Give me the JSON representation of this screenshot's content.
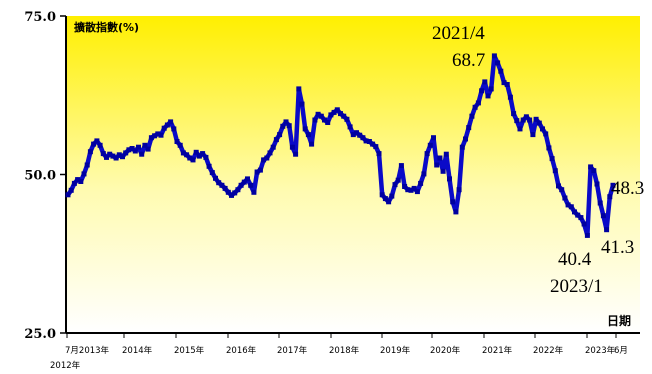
{
  "chart_data": {
    "type": "line",
    "ylabel": "擴散指數(%)",
    "xlabel": "日期",
    "ylim": [
      25.0,
      75.0
    ],
    "yticks": [
      "75.0",
      "50.0",
      "25.0"
    ],
    "xticks": [
      "7月2013年",
      "2014年",
      "2015年",
      "2016年",
      "2017年",
      "2018年",
      "2019年",
      "2020年",
      "2021年",
      "2022年",
      "2023年",
      "6月"
    ],
    "x_start_label": "2012年",
    "annotations": [
      {
        "text": "2021/4",
        "value": 68.7
      },
      {
        "text": "68.7",
        "value": 68.7
      },
      {
        "text": "48.3",
        "value": 48.3
      },
      {
        "text": "40.4",
        "value": 40.4
      },
      {
        "text": "41.3",
        "value": 41.3
      },
      {
        "text": "2023/1",
        "value": 40.4
      }
    ],
    "line_color": "#0a0ac8",
    "series": [
      {
        "values": [
          46.8,
          47.5,
          48.6,
          49.2,
          48.9,
          50.1,
          51.5,
          53.6,
          54.8,
          55.3,
          54.6,
          53.3,
          52.7,
          53.2,
          52.9,
          52.6,
          53.1,
          52.8,
          53.4,
          53.9,
          54.1,
          53.7,
          54.3,
          53.2,
          54.6,
          54.0,
          55.8,
          56.1,
          56.4,
          56.2,
          57.3,
          57.8,
          58.3,
          57.2,
          55.2,
          54.6,
          53.4,
          53.1,
          52.6,
          52.3,
          53.5,
          52.9,
          53.3,
          52.7,
          51.3,
          50.3,
          49.4,
          48.7,
          48.3,
          47.8,
          47.2,
          46.7,
          47.1,
          47.6,
          48.3,
          48.8,
          49.3,
          48.3,
          47.2,
          50.4,
          50.7,
          52.3,
          52.6,
          53.4,
          54.3,
          55.5,
          56.3,
          57.6,
          58.3,
          57.7,
          54.3,
          53.2,
          63.5,
          61.1,
          57.2,
          56.3,
          54.8,
          58.6,
          59.5,
          59.2,
          58.6,
          58.2,
          59.4,
          59.8,
          60.2,
          59.6,
          59.2,
          58.7,
          57.5,
          56.3,
          56.6,
          56.2,
          55.8,
          55.3,
          55.2,
          54.8,
          54.4,
          53.3,
          46.8,
          46.2,
          45.7,
          46.6,
          48.4,
          49.1,
          51.4,
          48.1,
          47.6,
          47.5,
          47.8,
          47.3,
          48.6,
          50.1,
          53.3,
          54.6,
          55.8,
          51.5,
          52.6,
          50.5,
          53.2,
          49.3,
          45.7,
          44.1,
          47.6,
          54.3,
          55.6,
          57.4,
          59.2,
          60.6,
          61.3,
          63.2,
          64.6,
          62.4,
          63.5,
          68.7,
          67.6,
          66.3,
          64.5,
          64.2,
          62.2,
          59.6,
          58.5,
          57.2,
          58.6,
          59.1,
          58.6,
          56.3,
          58.7,
          58.1,
          57.2,
          56.4,
          54.2,
          52.5,
          50.6,
          48.2,
          47.6,
          46.3,
          45.2,
          44.9,
          44.1,
          43.6,
          43.2,
          42.2,
          40.4,
          51.2,
          50.6,
          48.5,
          45.5,
          43.5,
          41.3,
          46.5,
          48.3
        ]
      }
    ]
  }
}
